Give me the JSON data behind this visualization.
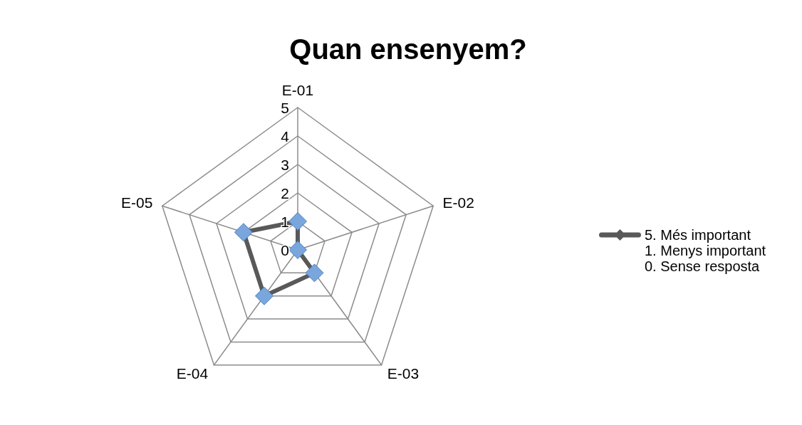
{
  "chart_data": {
    "type": "radar",
    "title": "Quan ensenyem?",
    "categories": [
      "E-01",
      "E-02",
      "E-03",
      "E-04",
      "E-05"
    ],
    "series": [
      {
        "name": "5. Més important\n1. Menys important\n0. Sense resposta",
        "color": "#595959",
        "values": [
          1,
          0,
          1,
          2,
          2
        ]
      }
    ],
    "ylim": [
      0,
      5
    ],
    "yticks": [
      0,
      1,
      2,
      3,
      4,
      5
    ],
    "grid": true,
    "legend": "right",
    "marker": "diamond",
    "line_style": "solid"
  }
}
